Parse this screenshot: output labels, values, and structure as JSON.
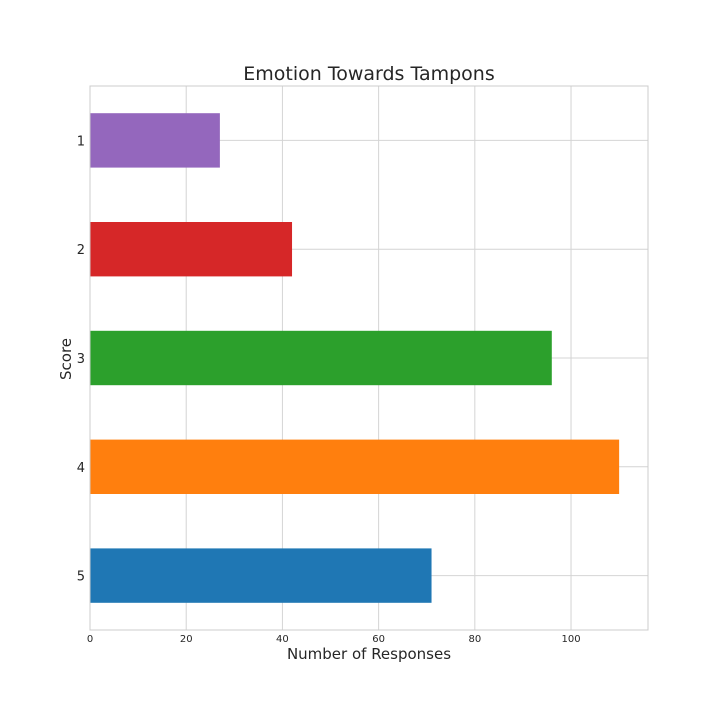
{
  "chart_data": {
    "type": "bar",
    "orientation": "horizontal",
    "title": "Emotion Towards Tampons",
    "xlabel": "Number of Responses",
    "ylabel": "Score",
    "categories": [
      "1",
      "2",
      "3",
      "4",
      "5"
    ],
    "values": [
      27,
      42,
      96,
      110,
      71
    ],
    "colors": [
      "#9467bd",
      "#d62728",
      "#2ca02c",
      "#ff7f0e",
      "#1f77b4"
    ],
    "xlim": [
      0,
      116
    ],
    "xticks": [
      0,
      20,
      40,
      60,
      80,
      100
    ],
    "grid": true
  }
}
